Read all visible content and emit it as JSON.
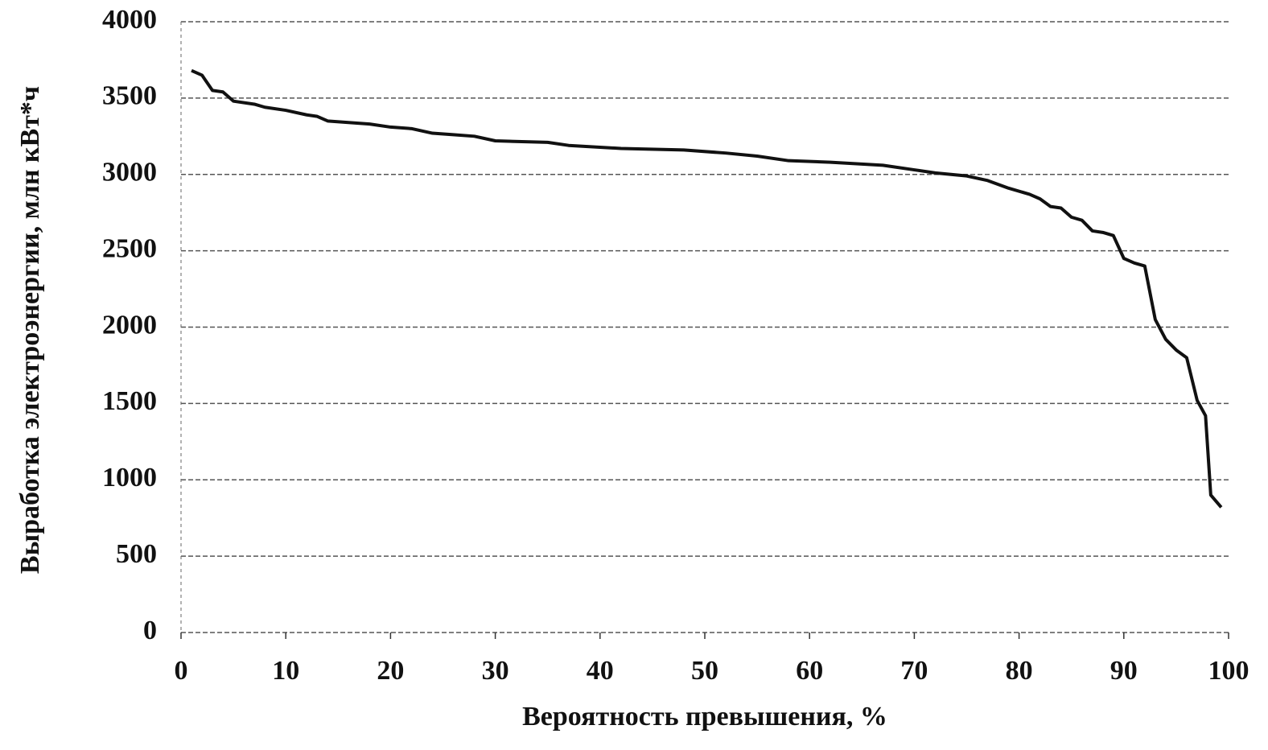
{
  "chart_data": {
    "type": "line",
    "xlabel": "Вероятность превышения, %",
    "ylabel": "Выработка электроэнергии, млн кВт*ч",
    "x": [
      1,
      2,
      3,
      4,
      5,
      7,
      8,
      10,
      12,
      13,
      14,
      16,
      18,
      20,
      22,
      24,
      26,
      28,
      30,
      35,
      37,
      42,
      48,
      52,
      55,
      58,
      62,
      67,
      70,
      72,
      75,
      77,
      79,
      81,
      82,
      83,
      84,
      85,
      86,
      87,
      88,
      89,
      90,
      91,
      92,
      93,
      94,
      95,
      96,
      97,
      97.8,
      98.3,
      99.3
    ],
    "series": [
      {
        "name": "Выработка",
        "color": "#111111",
        "values": [
          3680,
          3650,
          3550,
          3540,
          3480,
          3460,
          3440,
          3420,
          3390,
          3380,
          3350,
          3340,
          3330,
          3310,
          3300,
          3270,
          3260,
          3250,
          3220,
          3210,
          3190,
          3170,
          3160,
          3140,
          3120,
          3090,
          3080,
          3060,
          3030,
          3010,
          2990,
          2960,
          2910,
          2870,
          2840,
          2790,
          2780,
          2720,
          2700,
          2630,
          2620,
          2600,
          2450,
          2420,
          2400,
          2050,
          1920,
          1850,
          1800,
          1520,
          1420,
          900,
          820
        ]
      }
    ],
    "xlim": [
      0,
      100
    ],
    "xticks": [
      0,
      10,
      20,
      30,
      40,
      50,
      60,
      70,
      80,
      90,
      100
    ],
    "ylim": [
      0,
      4000
    ],
    "yticks": [
      0,
      500,
      1000,
      1500,
      2000,
      2500,
      3000,
      3500,
      4000
    ],
    "grid": true
  }
}
